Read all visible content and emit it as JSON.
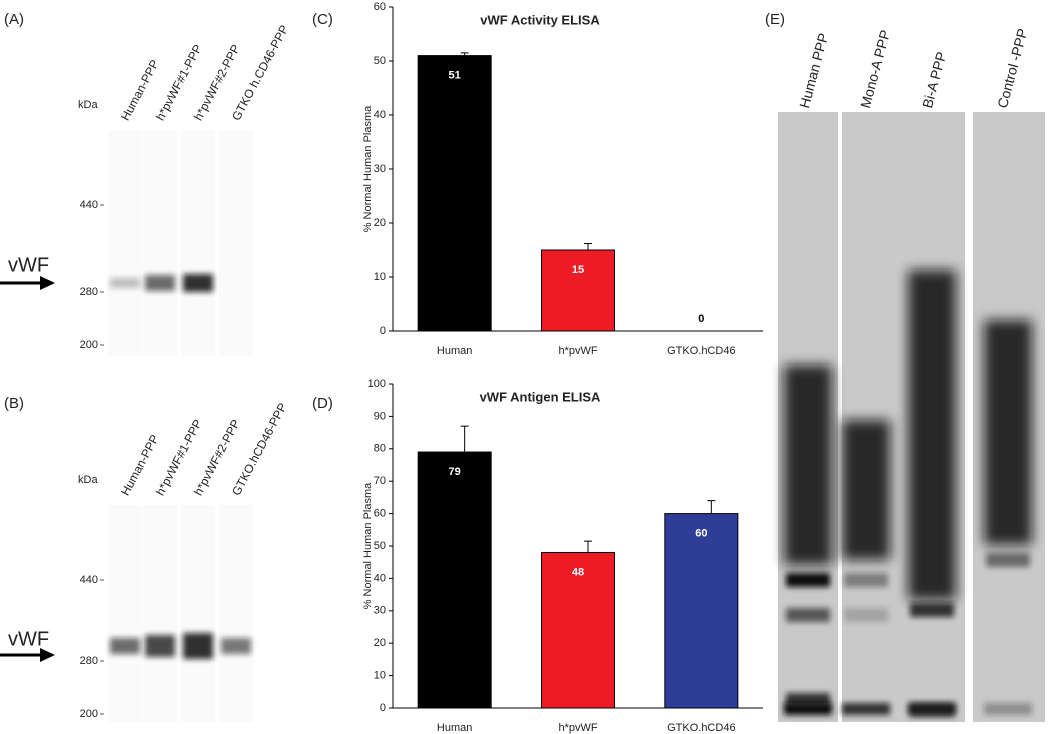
{
  "gels": [
    {
      "label": "(A)",
      "unit": "kDa",
      "lanes": [
        "Human-PPP",
        "h*pvWF#1-PPP",
        "h*pvWF#2-PPP",
        "GTKO h.CD46-PPP"
      ],
      "markers": [
        "440",
        "280",
        "200"
      ],
      "arrow": "vWF"
    },
    {
      "label": "(B)",
      "unit": "kDa",
      "lanes": [
        "Human-PPP",
        "h*pvWF#1-PPP",
        "h*pvWF#2-PPP",
        "GTKO.hCD46-PPP"
      ],
      "markers": [
        "440",
        "280",
        "200"
      ],
      "arrow": "vWF"
    }
  ],
  "blot": {
    "label": "(E)",
    "lanes": [
      "Human PPP",
      "Mono-A PPP",
      "Bi-A PPP",
      "Control -PPP"
    ]
  },
  "chart_data": [
    {
      "type": "bar",
      "panel": "(C)",
      "title": "vWF Activity ELISA",
      "ylabel": "% Normal Human Plasma",
      "categories": [
        "Human",
        "h*pvWF",
        "GTKO.hCD46"
      ],
      "values": [
        51,
        15,
        0
      ],
      "errors": [
        0.5,
        1.2,
        0
      ],
      "colors": [
        "#000000",
        "#ed1c24",
        "#2e3d97"
      ],
      "ylim": [
        0,
        60
      ],
      "yticks": [
        0,
        10,
        20,
        30,
        40,
        50,
        60
      ]
    },
    {
      "type": "bar",
      "panel": "(D)",
      "title": "vWF Antigen ELISA",
      "ylabel": "% Normal Human Plasma",
      "categories": [
        "Human",
        "h*pvWF",
        "GTKO.hCD46"
      ],
      "values": [
        79,
        48,
        60
      ],
      "errors": [
        8,
        3.5,
        4
      ],
      "colors": [
        "#000000",
        "#ed1c24",
        "#2e3d97"
      ],
      "ylim": [
        0,
        100
      ],
      "yticks": [
        0,
        10,
        20,
        30,
        40,
        50,
        60,
        70,
        80,
        90,
        100
      ]
    }
  ]
}
